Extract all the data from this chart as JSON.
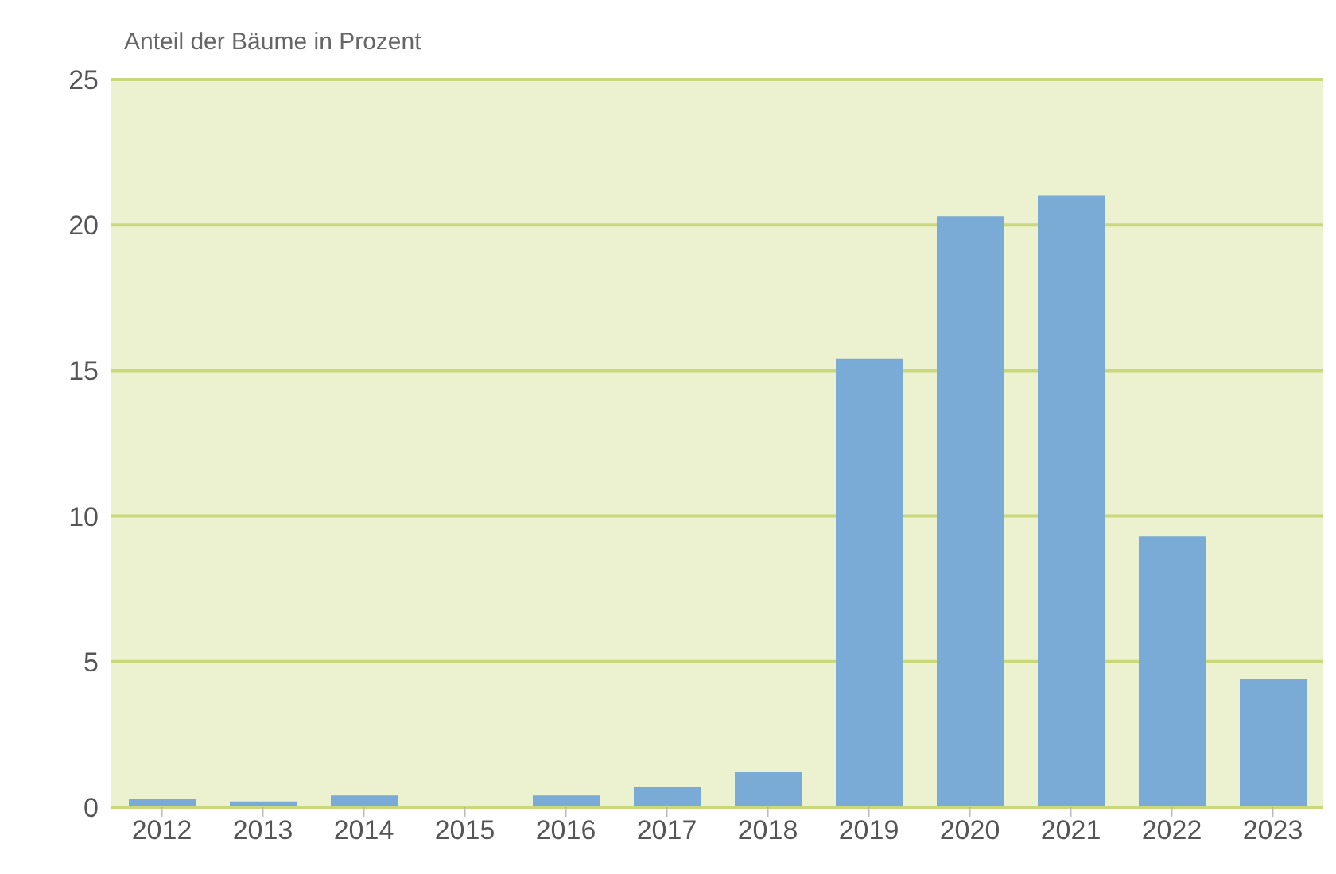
{
  "chart_data": {
    "type": "bar",
    "ylabel": "Anteil der Bäume in Prozent",
    "categories": [
      "2012",
      "2013",
      "2014",
      "2015",
      "2016",
      "2017",
      "2018",
      "2019",
      "2020",
      "2021",
      "2022",
      "2023"
    ],
    "values": [
      0.3,
      0.2,
      0.4,
      0,
      0.4,
      0.7,
      1.2,
      15.4,
      20.3,
      21.0,
      9.3,
      4.4
    ],
    "color": "#7aaad6",
    "ylim": [
      0,
      25
    ],
    "yticks": [
      0,
      5,
      10,
      15,
      20,
      25
    ],
    "grid": "y"
  }
}
